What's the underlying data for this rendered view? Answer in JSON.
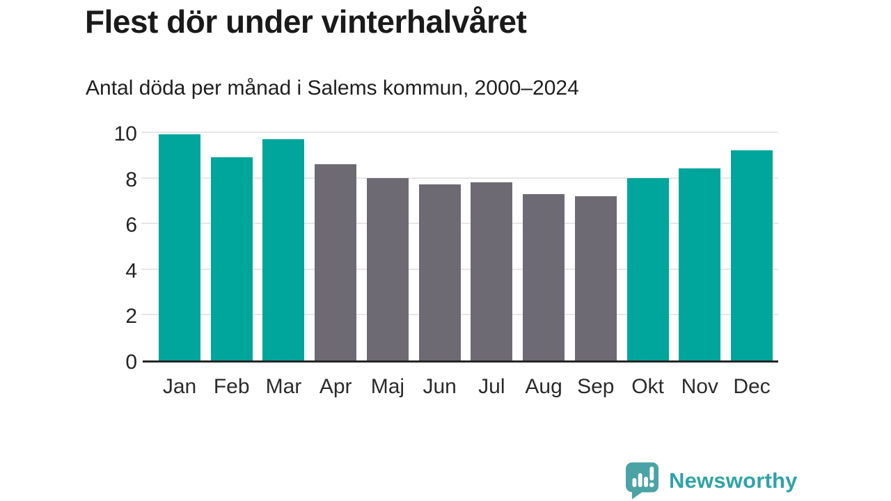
{
  "header": {
    "title": "Flest dör under vinterhalvåret",
    "subtitle": "Antal döda per månad i Salems kommun, 2000–2024"
  },
  "chart_data": {
    "type": "bar",
    "title": "Flest dör under vinterhalvåret",
    "subtitle": "Antal döda per månad i Salems kommun, 2000–2024",
    "categories": [
      "Jan",
      "Feb",
      "Mar",
      "Apr",
      "Maj",
      "Jun",
      "Jul",
      "Aug",
      "Sep",
      "Okt",
      "Nov",
      "Dec"
    ],
    "values": [
      9.9,
      8.9,
      9.7,
      8.6,
      8.0,
      7.7,
      7.8,
      7.3,
      7.2,
      8.0,
      8.4,
      9.2
    ],
    "bar_colors": [
      "#00a59b",
      "#00a59b",
      "#00a59b",
      "#6e6a73",
      "#6e6a73",
      "#6e6a73",
      "#6e6a73",
      "#6e6a73",
      "#6e6a73",
      "#00a59b",
      "#00a59b",
      "#00a59b"
    ],
    "color_meaning": {
      "#00a59b": "winter-half-year months (Okt–Mar)",
      "#6e6a73": "summer-half-year months (Apr–Sep)"
    },
    "xlabel": "",
    "ylabel": "",
    "y_ticks": [
      0,
      2,
      4,
      6,
      8,
      10
    ],
    "ylim": [
      0,
      10
    ],
    "grid": true,
    "legend": false
  },
  "footer": {
    "brand": "Newsworthy",
    "brand_color": "#2fa3a6",
    "logo_icon": "newsworthy-speech-bubble-bars-icon",
    "logo_fill": "#4aa3a4"
  }
}
